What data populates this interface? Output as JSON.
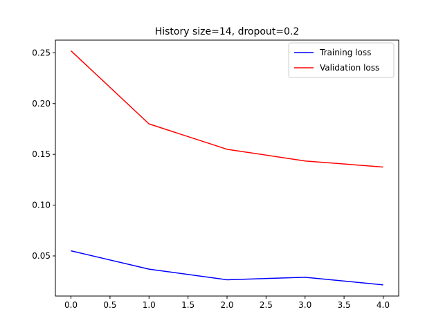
{
  "chart_data": {
    "type": "line",
    "title": "History size=14, dropout=0.2",
    "xlabel": "",
    "ylabel": "",
    "x": [
      0.0,
      1.0,
      2.0,
      3.0,
      4.0
    ],
    "xlim": [
      -0.2,
      4.2
    ],
    "ylim": [
      0.0105,
      0.2625
    ],
    "xticks": [
      0.0,
      0.5,
      1.0,
      1.5,
      2.0,
      2.5,
      3.0,
      3.5,
      4.0
    ],
    "xtick_labels": [
      "0.0",
      "0.5",
      "1.0",
      "1.5",
      "2.0",
      "2.5",
      "3.0",
      "3.5",
      "4.0"
    ],
    "yticks": [
      0.05,
      0.1,
      0.15,
      0.2,
      0.25
    ],
    "ytick_labels": [
      "0.05",
      "0.10",
      "0.15",
      "0.20",
      "0.25"
    ],
    "grid": false,
    "legend_position": "top-right",
    "series": [
      {
        "name": "Training loss",
        "color": "#0000ff",
        "values": [
          0.055,
          0.037,
          0.0265,
          0.029,
          0.0215
        ]
      },
      {
        "name": "Validation loss",
        "color": "#ff0000",
        "values": [
          0.252,
          0.18,
          0.155,
          0.1435,
          0.1375
        ]
      }
    ]
  }
}
